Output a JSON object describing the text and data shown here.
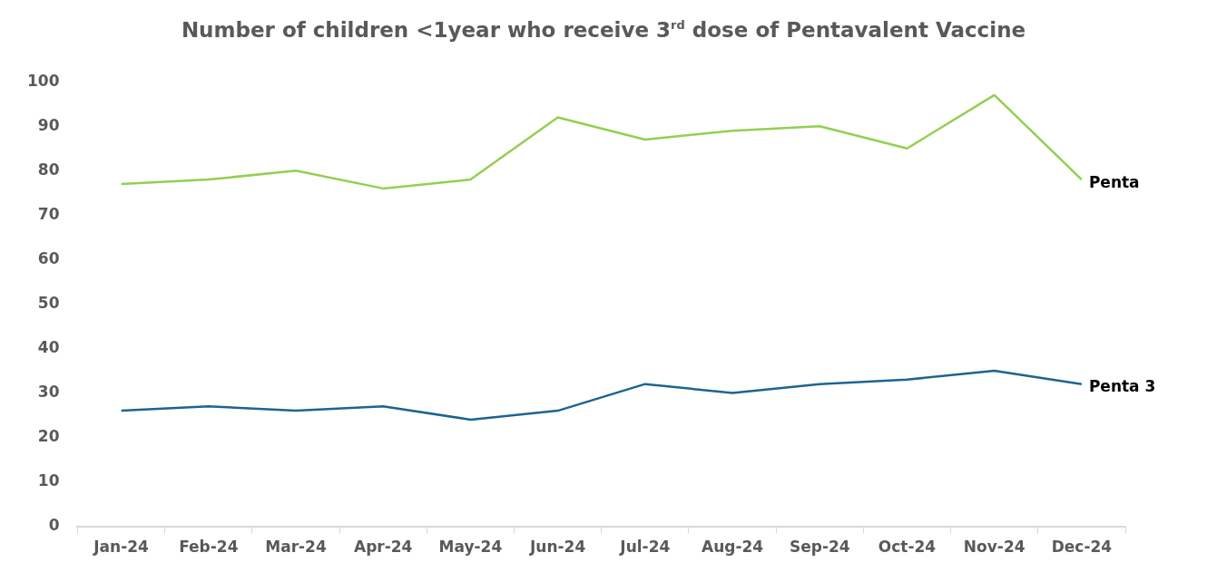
{
  "chart_data": {
    "type": "line",
    "title": "Number of children <1year who receive 3$^{rd}$ dose of Pentavalent Vaccine",
    "categories": [
      "Jan-24",
      "Feb-24",
      "Mar-24",
      "Apr-24",
      "May-24",
      "Jun-24",
      "Jul-24",
      "Aug-24",
      "Sep-24",
      "Oct-24",
      "Nov-24",
      "Dec-24"
    ],
    "series": [
      {
        "name": "Penta",
        "color": "#92d050",
        "values": [
          77,
          78,
          80,
          76,
          78,
          92,
          87,
          89,
          90,
          85,
          97,
          78
        ]
      },
      {
        "name": "Penta 3",
        "color": "#1f6391",
        "values": [
          26,
          27,
          26,
          27,
          24,
          26,
          32,
          30,
          32,
          33,
          35,
          32
        ]
      }
    ],
    "ylim": [
      0,
      100
    ],
    "yticks": [
      0,
      10,
      20,
      30,
      40,
      50,
      60,
      70,
      80,
      90,
      100
    ],
    "grid": false,
    "legend": false,
    "marker": "none",
    "line_style": "solid"
  }
}
